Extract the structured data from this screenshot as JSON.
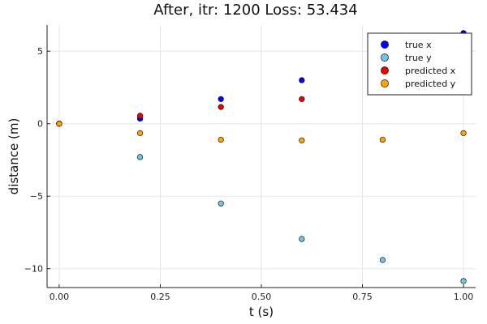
{
  "chart_data": {
    "type": "scatter",
    "title": "After, itr: 1200 Loss: 53.434",
    "xlabel": "t (s)",
    "ylabel": "distance (m)",
    "xlim": [
      -0.03,
      1.03
    ],
    "ylim": [
      -11.3,
      6.8
    ],
    "xticks": [
      {
        "value": 0,
        "label": "0.00"
      },
      {
        "value": 0.25,
        "label": "0.25"
      },
      {
        "value": 0.5,
        "label": "0.50"
      },
      {
        "value": 0.75,
        "label": "0.75"
      },
      {
        "value": 1,
        "label": "1.00"
      }
    ],
    "yticks": [
      {
        "value": 5,
        "label": "5"
      },
      {
        "value": 0,
        "label": "0"
      },
      {
        "value": -5,
        "label": "−5"
      },
      {
        "value": -10,
        "label": "−10"
      }
    ],
    "grid": true,
    "legend_position": "top-right",
    "series": [
      {
        "name": "true x",
        "color": "#0000ff",
        "x": [
          0,
          0.2,
          0.4,
          0.6,
          1.0
        ],
        "y": [
          0,
          0.35,
          1.7,
          3.0,
          6.25
        ]
      },
      {
        "name": "true y",
        "color": "#6ec3e6",
        "x": [
          0,
          0.2,
          0.4,
          0.6,
          0.8,
          1.0
        ],
        "y": [
          0,
          -2.3,
          -5.5,
          -7.95,
          -9.4,
          -10.85
        ]
      },
      {
        "name": "predicted x",
        "color": "#ee0000",
        "x": [
          0,
          0.2,
          0.4,
          0.6,
          1.0
        ],
        "y": [
          0,
          0.55,
          1.15,
          1.7,
          2.4
        ]
      },
      {
        "name": "predicted y",
        "color": "#ffa500",
        "x": [
          0,
          0.2,
          0.4,
          0.6,
          0.8,
          1.0
        ],
        "y": [
          0,
          -0.65,
          -1.1,
          -1.15,
          -1.1,
          -0.65
        ]
      }
    ]
  }
}
